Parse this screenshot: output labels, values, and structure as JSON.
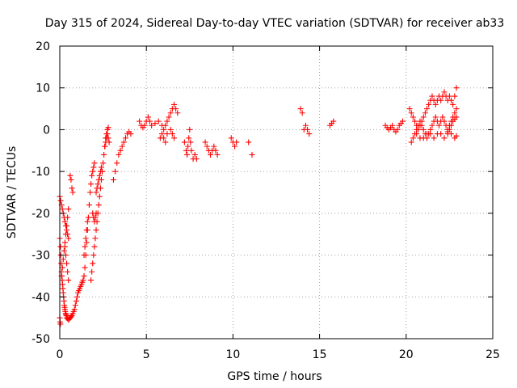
{
  "chart_data": {
    "type": "scatter",
    "title": "Day 315 of 2024, Sidereal Day-to-day VTEC variation (SDTVAR) for receiver ab33",
    "xlabel": "GPS time / hours",
    "ylabel": "SDTVAR / TECUs",
    "xlim": [
      0,
      25
    ],
    "ylim": [
      -50,
      20
    ],
    "xticks": [
      0,
      5,
      10,
      15,
      20,
      25
    ],
    "yticks": [
      -50,
      -40,
      -30,
      -20,
      -10,
      0,
      10,
      20
    ],
    "xtick_labels": [
      "0",
      "5",
      "10",
      "15",
      "20",
      "25"
    ],
    "ytick_labels": [
      "-50",
      "-40",
      "-30",
      "-20",
      "-10",
      "0",
      "10",
      "20"
    ],
    "grid": true,
    "marker": "+",
    "marker_color": "#ff0000",
    "series": [
      {
        "name": "SDTVAR",
        "x": [
          0.0,
          0.04,
          0.06,
          0.08,
          0.1,
          0.12,
          0.14,
          0.16,
          0.18,
          0.2,
          0.22,
          0.24,
          0.26,
          0.28,
          0.3,
          0.32,
          0.34,
          0.36,
          0.38,
          0.4,
          0.45,
          0.5,
          0.55,
          0.6,
          0.65,
          0.7,
          0.75,
          0.8,
          0.85,
          0.9,
          0.95,
          1.0,
          1.05,
          1.1,
          1.15,
          1.2,
          1.25,
          1.3,
          1.35,
          1.4,
          1.45,
          1.5,
          1.55,
          1.6,
          1.65,
          1.7,
          1.75,
          1.8,
          1.85,
          1.9,
          1.95,
          2.0,
          0.0,
          0.05,
          0.1,
          0.15,
          0.2,
          0.25,
          0.3,
          0.35,
          0.4,
          0.45,
          0.5,
          0.1,
          0.15,
          0.2,
          0.25,
          0.3,
          0.35,
          0.4,
          0.45,
          0.5,
          0.3,
          0.35,
          0.4,
          0.45,
          0.5,
          0.6,
          0.65,
          0.7,
          0.75,
          1.4,
          1.45,
          1.5,
          1.55,
          1.6,
          0.0,
          0.02,
          0.04,
          1.8,
          1.85,
          1.9,
          1.95,
          2.0,
          2.05,
          2.1,
          2.15,
          2.2,
          2.25,
          2.3,
          2.35,
          2.4,
          2.45,
          2.5,
          2.55,
          2.6,
          2.65,
          2.7,
          2.75,
          2.8,
          1.9,
          1.95,
          2.0,
          2.05,
          2.1,
          2.1,
          2.15,
          2.2,
          2.25,
          2.3,
          2.35,
          2.4,
          2.6,
          2.65,
          2.7,
          2.75,
          2.8,
          2.85,
          3.1,
          3.2,
          3.3,
          3.4,
          3.5,
          3.6,
          3.7,
          3.8,
          3.9,
          4.0,
          4.1,
          4.6,
          4.7,
          4.8,
          4.9,
          5.0,
          5.1,
          5.2,
          5.3,
          5.5,
          5.7,
          5.9,
          6.0,
          6.1,
          6.2,
          6.3,
          6.4,
          6.5,
          6.6,
          6.7,
          6.8,
          5.8,
          5.9,
          6.0,
          6.1,
          6.2,
          6.4,
          6.5,
          6.6,
          7.2,
          7.3,
          7.35,
          7.4,
          7.45,
          7.5,
          7.55,
          7.6,
          7.7,
          7.8,
          7.9,
          8.4,
          8.5,
          8.6,
          8.7,
          8.8,
          8.9,
          9.0,
          9.1,
          9.9,
          10.0,
          10.1,
          10.2,
          10.9,
          11.1,
          13.9,
          14.0,
          14.1,
          14.2,
          14.3,
          14.4,
          15.6,
          15.7,
          15.8,
          18.8,
          18.9,
          19.0,
          19.1,
          19.2,
          19.3,
          19.4,
          19.5,
          19.6,
          19.7,
          19.8,
          20.2,
          20.3,
          20.4,
          20.5,
          20.6,
          20.7,
          20.8,
          20.9,
          21.0,
          21.1,
          21.2,
          21.3,
          21.4,
          21.5,
          21.6,
          21.7,
          21.8,
          21.9,
          22.0,
          22.1,
          22.2,
          22.3,
          22.4,
          22.5,
          22.6,
          22.7,
          22.8,
          22.9,
          20.3,
          20.4,
          20.5,
          20.6,
          20.7,
          20.8,
          20.9,
          21.0,
          21.1,
          21.2,
          21.3,
          21.4,
          21.5,
          21.6,
          21.7,
          21.8,
          21.9,
          22.0,
          22.1,
          22.2,
          22.3,
          22.4,
          22.5,
          22.6,
          22.7,
          22.8,
          22.9,
          20.6,
          20.8,
          21.0,
          21.2,
          21.4,
          21.6,
          21.8,
          22.0,
          22.2,
          22.4,
          22.6,
          22.8,
          22.9,
          22.4,
          22.5,
          22.6,
          22.7,
          22.8,
          22.9
        ],
        "y": [
          -26,
          -28,
          -30,
          -32,
          -34,
          -35,
          -36,
          -37,
          -38,
          -39,
          -40,
          -41,
          -42,
          -42.5,
          -43,
          -43.5,
          -44,
          -44.2,
          -44.5,
          -45,
          -45.2,
          -45.5,
          -45.2,
          -45,
          -44.8,
          -44.5,
          -44,
          -43.5,
          -43,
          -42,
          -41,
          -40,
          -39,
          -38.5,
          -38,
          -37.5,
          -37,
          -36.5,
          -36,
          -35,
          -33,
          -30,
          -27,
          -24,
          -21,
          -18,
          -15,
          -13,
          -11,
          -10,
          -9,
          -8,
          -16,
          -17,
          -18,
          -19,
          -20,
          -21,
          -22,
          -23,
          -24,
          -25,
          -26,
          -35,
          -33,
          -31,
          -29,
          -27,
          -25,
          -23,
          -21,
          -19,
          -28,
          -30,
          -32,
          -34,
          -36,
          -11,
          -12,
          -14,
          -15,
          -30,
          -28,
          -26,
          -24,
          -22,
          -45,
          -46,
          -46.5,
          -36,
          -34,
          -32,
          -30,
          -28,
          -26,
          -24,
          -22,
          -20,
          -18,
          -16,
          -14,
          -12,
          -10,
          -8,
          -6,
          -4,
          -2,
          -1,
          0,
          0.5,
          -20,
          -21,
          -22,
          -21,
          -20,
          -15,
          -14,
          -13,
          -12,
          -11,
          -10,
          -9,
          -4,
          -3,
          -2,
          -1,
          -2,
          -3,
          -12,
          -10,
          -8,
          -6,
          -5,
          -4,
          -3,
          -2,
          -1,
          -0.5,
          -1,
          2,
          1,
          0.5,
          1,
          2,
          3,
          2,
          1,
          1.5,
          2,
          1,
          0,
          1,
          2,
          3,
          4,
          5,
          6,
          5,
          4,
          -2,
          -1,
          -2,
          -3,
          -1,
          0,
          -1,
          -2,
          -3,
          -5,
          -6,
          -4,
          -2,
          0,
          -3,
          -5,
          -7,
          -6,
          -7,
          -3,
          -4,
          -5,
          -6,
          -5,
          -4,
          -5,
          -6,
          -2,
          -3,
          -4,
          -3,
          -3,
          -6,
          5,
          4,
          0,
          1,
          0,
          -1,
          1,
          1.5,
          2,
          1,
          0.5,
          0,
          0.5,
          1,
          0,
          -0.5,
          0,
          1,
          1.5,
          2,
          5,
          4,
          3,
          2,
          1,
          0,
          1,
          2,
          3,
          4,
          5,
          6,
          7,
          8,
          7,
          6,
          7,
          8,
          7,
          8,
          9,
          8,
          7,
          8,
          7,
          6,
          8,
          10,
          -3,
          -2,
          -1,
          0,
          1,
          2,
          1,
          0,
          -1,
          -2,
          -1,
          0,
          1,
          2,
          3,
          2,
          1,
          2,
          3,
          2,
          1,
          0,
          1,
          2,
          3,
          4,
          5,
          -1,
          -2,
          -2,
          -1,
          -1,
          -2,
          -1,
          -1,
          -2,
          -1,
          -1,
          -2,
          -1.5,
          -0.5,
          0,
          1,
          2,
          2.5,
          3
        ]
      }
    ]
  }
}
